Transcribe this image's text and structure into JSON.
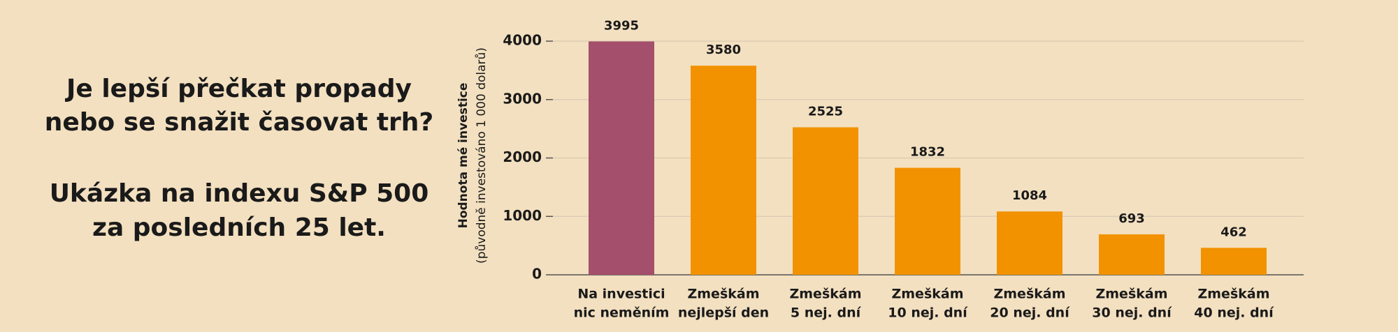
{
  "chart_data": {
    "type": "bar",
    "headline": [
      "Je lepší přečkat propady",
      "nebo se snažit časovat trh?"
    ],
    "subheadline": [
      "Ukázka na indexu S&P 500",
      "za posledních 25 let."
    ],
    "ylabel": [
      "Hodnota mé investice",
      "(původně investováno 1 000 dolarů)"
    ],
    "categories": [
      [
        "Na investici",
        "nic neměním"
      ],
      [
        "Zmeškám",
        "nejlepší den"
      ],
      [
        "Zmeškám",
        "5 nej. dní"
      ],
      [
        "Zmeškám",
        "10 nej. dní"
      ],
      [
        "Zmeškám",
        "20 nej. dní"
      ],
      [
        "Zmeškám",
        "30 nej. dní"
      ],
      [
        "Zmeškám",
        "40 nej. dní"
      ]
    ],
    "values": [
      3995,
      3580,
      2525,
      1832,
      1084,
      693,
      462
    ],
    "colors": [
      "#a44f6b",
      "#f29200",
      "#f29200",
      "#f29200",
      "#f29200",
      "#f29200",
      "#f29200"
    ],
    "ylim": [
      0,
      4000
    ],
    "yticks": [
      0,
      1000,
      2000,
      3000,
      4000
    ],
    "grid": true
  }
}
